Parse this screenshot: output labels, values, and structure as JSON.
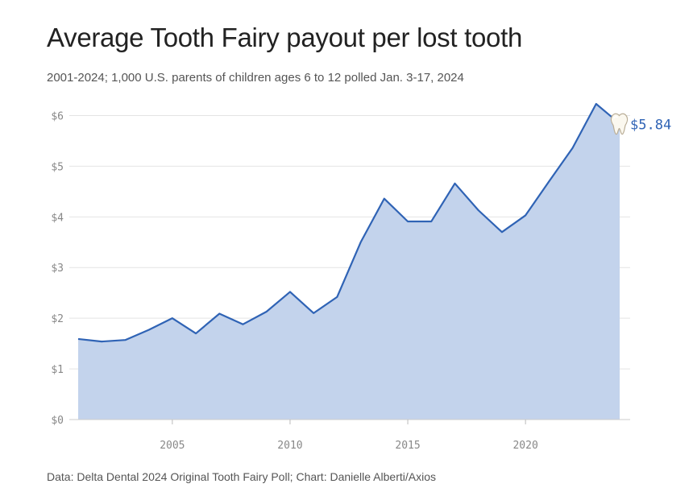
{
  "title": "Average Tooth Fairy payout per lost tooth",
  "subtitle": "2001-2024; 1,000 U.S. parents of children ages 6 to 12 polled Jan. 3-17, 2024",
  "source": "Data: Delta Dental 2024 Original Tooth Fairy Poll; Chart: Danielle Alberti/Axios",
  "chart_data": {
    "type": "area",
    "x": [
      2001,
      2002,
      2003,
      2004,
      2005,
      2006,
      2007,
      2008,
      2009,
      2010,
      2011,
      2012,
      2013,
      2014,
      2015,
      2016,
      2017,
      2018,
      2019,
      2020,
      2021,
      2022,
      2023,
      2024
    ],
    "values": [
      1.59,
      1.54,
      1.57,
      1.77,
      2.0,
      1.7,
      2.09,
      1.88,
      2.13,
      2.52,
      2.1,
      2.42,
      3.5,
      4.36,
      3.91,
      3.91,
      4.66,
      4.13,
      3.7,
      4.03,
      4.7,
      5.36,
      6.23,
      5.84
    ],
    "yticks": [
      0,
      1,
      2,
      3,
      4,
      5,
      6
    ],
    "ytick_labels": [
      "$0",
      "$1",
      "$2",
      "$3",
      "$4",
      "$5",
      "$6"
    ],
    "xticks": [
      2005,
      2010,
      2015,
      2020
    ],
    "xtick_labels": [
      "2005",
      "2010",
      "2015",
      "2020"
    ],
    "xlim": [
      2001,
      2024
    ],
    "ylim": [
      0,
      6.23
    ],
    "grid": true,
    "end_label": "$5.84",
    "end_icon": "tooth-icon",
    "line_color": "#2f63b5",
    "fill_color": "#c3d3ec"
  }
}
